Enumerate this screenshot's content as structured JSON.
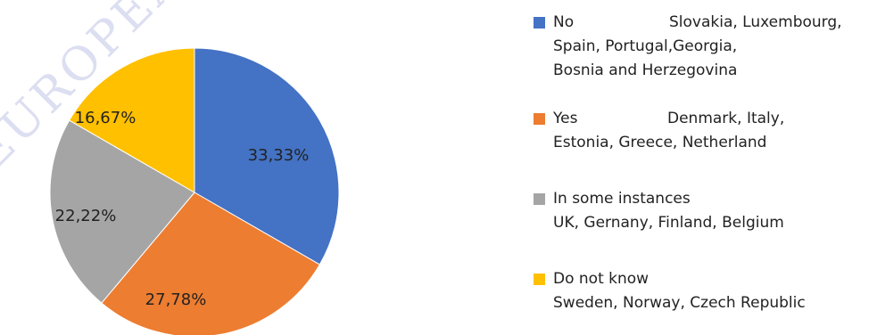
{
  "watermark": "EUROPEAN ASSOCIATION",
  "chart_data": {
    "type": "pie",
    "slices": [
      {
        "label": "No",
        "value": 33.33,
        "display": "33,33%",
        "color": "#4472c4"
      },
      {
        "label": "Yes",
        "value": 27.78,
        "display": "27,78%",
        "color": "#ed7d31"
      },
      {
        "label": "In some instances",
        "value": 22.22,
        "display": "22,22%",
        "color": "#a5a5a5"
      },
      {
        "label": "Do not know",
        "value": 16.67,
        "display": "16,67%",
        "color": "#ffc000"
      }
    ],
    "legend_position": "right"
  },
  "legend": [
    {
      "answer": "No",
      "lines": [
        "Slovakia, Luxembourg,",
        "Spain, Portugal,Georgia,",
        "Bosnia and Herzegovina"
      ]
    },
    {
      "answer": "Yes",
      "lines": [
        "Denmark, Italy,",
        "Estonia, Greece, Netherland"
      ]
    },
    {
      "answer": "In some instances",
      "lines": [
        "UK, Gernany, Finland, Belgium"
      ]
    },
    {
      "answer": "Do not know",
      "lines": [
        "Sweden, Norway, Czech Republic"
      ]
    }
  ]
}
